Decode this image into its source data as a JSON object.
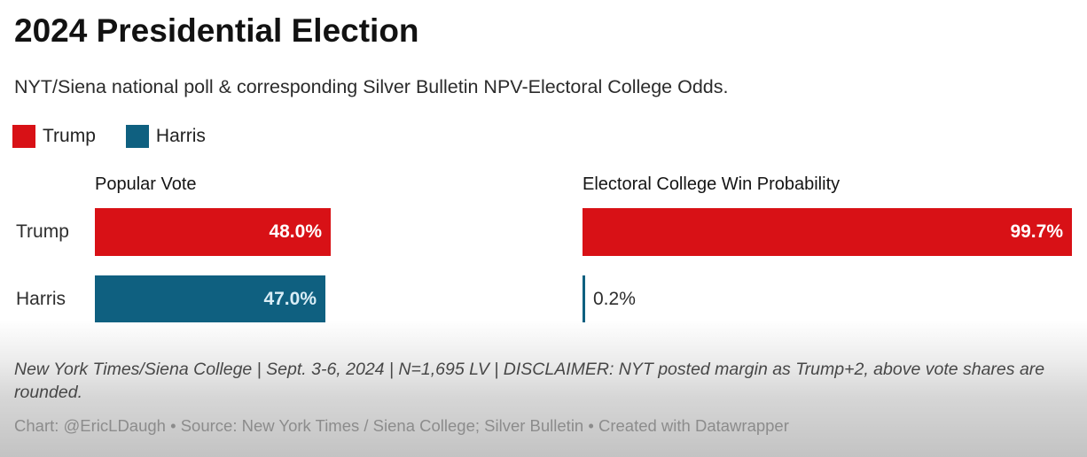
{
  "title": "2024 Presidential Election",
  "subtitle": "NYT/Siena national poll & corresponding Silver Bulletin NPV-Electoral College Odds.",
  "legend": {
    "items": [
      {
        "label": "Trump",
        "color": "#d81116"
      },
      {
        "label": "Harris",
        "color": "#0f6080"
      }
    ]
  },
  "chart_data": {
    "type": "bar",
    "orientation": "horizontal",
    "categories": [
      "Trump",
      "Harris"
    ],
    "series": [
      {
        "name": "Popular Vote",
        "values": [
          48.0,
          47.0
        ],
        "value_labels": [
          "48.0%",
          "47.0%"
        ]
      },
      {
        "name": "Electoral College Win Probability",
        "values": [
          99.7,
          0.2
        ],
        "value_labels": [
          "99.7%",
          "0.2%"
        ]
      }
    ],
    "xlim": [
      0,
      100
    ],
    "grid": false,
    "legend_position": "top-left",
    "colors": {
      "Trump": "#d81116",
      "Harris": "#0f6080"
    },
    "value_label_style": "inside bar end (outside for near-zero bars)"
  },
  "footer": {
    "note": "New York Times/Siena College | Sept. 3-6, 2024 | N=1,695 LV | DISCLAIMER: NYT posted margin as Trump+2, above vote shares are rounded.",
    "credit": "Chart: @EricLDaugh • Source: New York Times / Siena College; Silver Bulletin • Created with Datawrapper"
  }
}
